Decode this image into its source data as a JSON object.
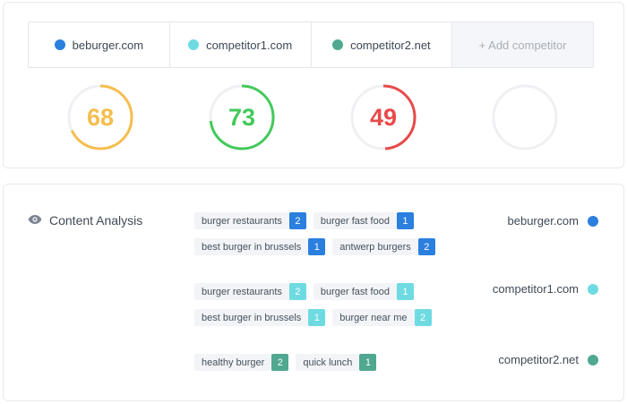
{
  "colors": {
    "site": "#2b7fde",
    "competitor1": "#6edbe2",
    "competitor2": "#4fa88f",
    "gauge_orange": "#f5be4e",
    "gauge_green": "#44c95b",
    "gauge_red": "#e84a4a",
    "gauge_track": "#eef0f3"
  },
  "tabs": [
    {
      "label": "beburger.com",
      "dot_color": "#2b7fde"
    },
    {
      "label": "competitor1.com",
      "dot_color": "#6edbe2"
    },
    {
      "label": "competitor2.net",
      "dot_color": "#4fa88f"
    },
    {
      "label": "+ Add competitor"
    }
  ],
  "scores": [
    {
      "value": "68",
      "percent": 0.68,
      "color": "#f5be4e"
    },
    {
      "value": "73",
      "percent": 0.73,
      "color": "#44c95b"
    },
    {
      "value": "49",
      "percent": 0.49,
      "color": "#e84a4a"
    },
    {
      "value": "",
      "percent": 0,
      "color": "#eef0f3"
    }
  ],
  "content_analysis": {
    "title": "Content Analysis",
    "icon": "eye-icon",
    "groups": [
      {
        "site": "beburger.com",
        "color": "#2b7fde",
        "rows": [
          [
            {
              "keyword": "burger restaurants",
              "count": "2"
            },
            {
              "keyword": "burger fast food",
              "count": "1"
            }
          ],
          [
            {
              "keyword": "best burger in brussels",
              "count": "1"
            },
            {
              "keyword": "antwerp burgers",
              "count": "2"
            }
          ]
        ]
      },
      {
        "site": "competitor1.com",
        "color": "#6edbe2",
        "rows": [
          [
            {
              "keyword": "burger restaurants",
              "count": "2"
            },
            {
              "keyword": "burger fast food",
              "count": "1"
            }
          ],
          [
            {
              "keyword": "best burger in brussels",
              "count": "1"
            },
            {
              "keyword": "burger near me",
              "count": "2"
            }
          ]
        ]
      },
      {
        "site": "competitor2.net",
        "color": "#4fa88f",
        "rows": [
          [
            {
              "keyword": "healthy burger",
              "count": "2"
            },
            {
              "keyword": "quick lunch",
              "count": "1"
            }
          ]
        ]
      }
    ]
  }
}
